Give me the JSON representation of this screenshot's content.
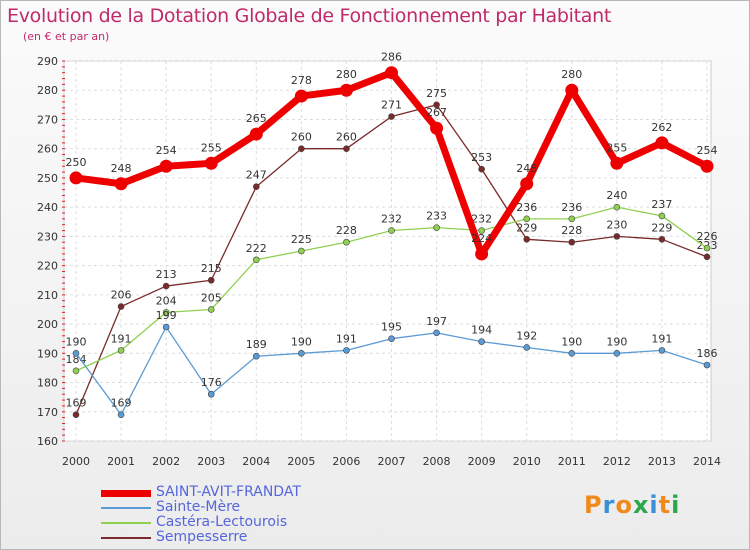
{
  "chart_data": {
    "type": "line",
    "title": "Evolution de la Dotation Globale de Fonctionnement par Habitant",
    "subtitle": "(en € et par an)",
    "x": [
      "2000",
      "2001",
      "2002",
      "2003",
      "2004",
      "2005",
      "2006",
      "2007",
      "2008",
      "2009",
      "2010",
      "2011",
      "2012",
      "2013",
      "2014"
    ],
    "ylim": [
      160,
      290
    ],
    "yticks": [
      160,
      170,
      180,
      190,
      200,
      210,
      220,
      230,
      240,
      250,
      260,
      270,
      280,
      290
    ],
    "grid": true,
    "legend_position": "bottom-left",
    "series": [
      {
        "name": "SAINT-AVIT-FRANDAT",
        "color": "#ee0000",
        "values": [
          250,
          248,
          254,
          255,
          265,
          278,
          280,
          286,
          267,
          224,
          248,
          280,
          255,
          262,
          254
        ]
      },
      {
        "name": "Sainte-Mère",
        "color": "#5b9bd5",
        "values": [
          190,
          169,
          199,
          176,
          189,
          190,
          191,
          195,
          197,
          194,
          192,
          190,
          190,
          191,
          186
        ]
      },
      {
        "name": "Castéra-Lectourois",
        "color": "#90d050",
        "values": [
          184,
          191,
          204,
          205,
          222,
          225,
          228,
          232,
          233,
          232,
          236,
          236,
          240,
          237,
          226
        ]
      },
      {
        "name": "Sempesserre",
        "color": "#7a2a2a",
        "values": [
          169,
          206,
          213,
          215,
          247,
          260,
          260,
          271,
          275,
          253,
          229,
          228,
          230,
          229,
          223
        ]
      }
    ]
  },
  "logo": {
    "text": "Proxiti",
    "colors": [
      "#f08a1c",
      "#3a8fd8",
      "#f08a1c",
      "#2aa84a",
      "#3a8fd8",
      "#f08a1c",
      "#2aa84a"
    ]
  }
}
